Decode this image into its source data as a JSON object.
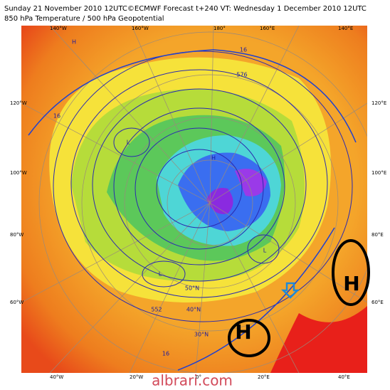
{
  "header": {
    "line1": "Sunday 21 November 2010 12UTC©ECMWF Forecast t+240 VT: Wednesday 1 December 2010 12UTC",
    "line2": "850 hPa Temperature / 500 hPa Geopotential"
  },
  "labels": {
    "top": [
      "140°W",
      "160°W",
      "180°",
      "160°E",
      "140°E"
    ],
    "left": [
      "120°W",
      "100°W",
      "80°W",
      "60°W"
    ],
    "right": [
      "120°E",
      "100°E",
      "80°E",
      "60°E"
    ],
    "bottom": [
      "40°W",
      "20°W",
      "0°",
      "20°E",
      "40°E"
    ]
  },
  "map_labels": [
    "H",
    "L",
    "576",
    "16",
    "16",
    "552",
    "30°N",
    "40°N",
    "50°N",
    "L",
    "H",
    "16",
    "L"
  ],
  "annotations": [
    {
      "label": "H"
    },
    {
      "label": "H"
    }
  ],
  "watermark": "albrari.com"
}
